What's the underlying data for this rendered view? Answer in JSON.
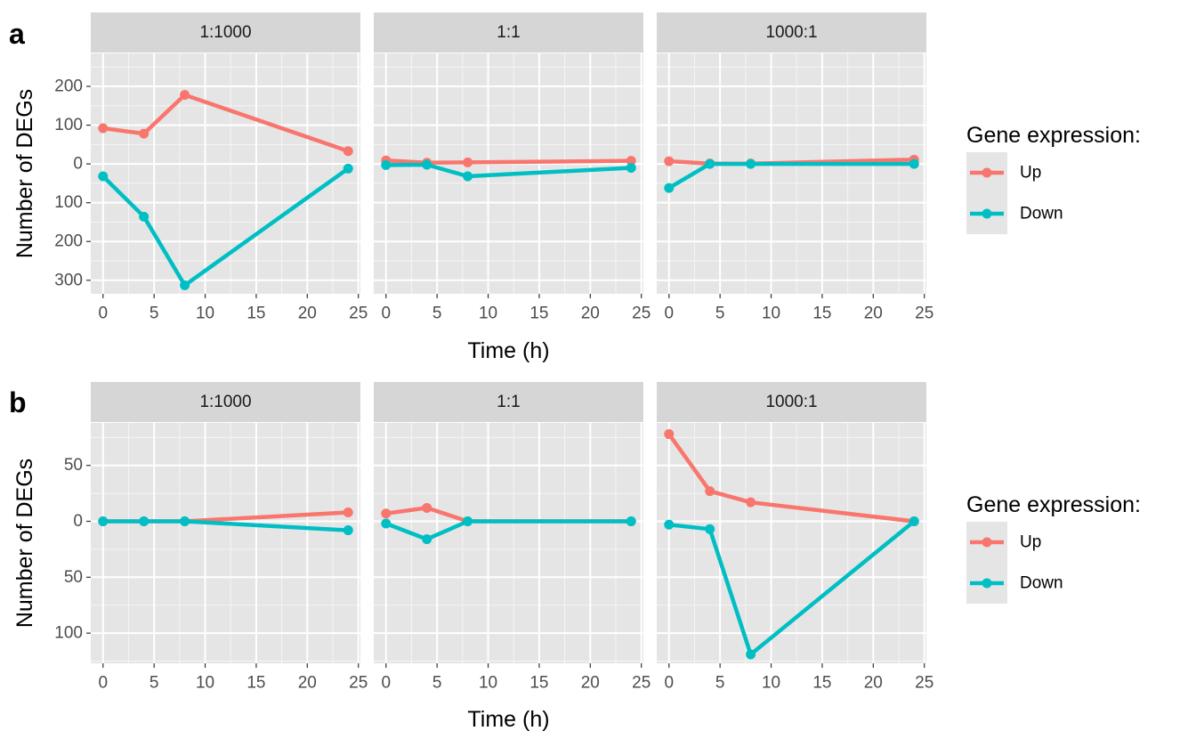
{
  "chart_data": [
    {
      "panel_letter": "a",
      "type": "line",
      "ylabel": "Number of DEGs",
      "xlabel": "Time (h)",
      "xlim": [
        -1.2,
        25.2
      ],
      "ylim": [
        -335,
        285
      ],
      "x_ticks": [
        "0",
        "5",
        "10",
        "15",
        "20",
        "25"
      ],
      "y_tick_values": [
        200,
        100,
        0,
        -100,
        -200,
        -300
      ],
      "y_tick_labels": [
        "200",
        "100",
        "0",
        "100",
        "200",
        "300"
      ],
      "legend_title": "Gene expression:",
      "legend_position": "right",
      "facets": [
        {
          "label": "1:1000",
          "series": [
            {
              "name": "Up",
              "color": "#F8766D",
              "points": [
                [
                  0,
                  92
                ],
                [
                  4,
                  78
                ],
                [
                  8,
                  178
                ],
                [
                  24,
                  33
                ]
              ]
            },
            {
              "name": "Down",
              "color": "#00BFC4",
              "points": [
                [
                  0,
                  -32
                ],
                [
                  4,
                  -136
                ],
                [
                  8,
                  -313
                ],
                [
                  24,
                  -12
                ]
              ]
            }
          ]
        },
        {
          "label": "1:1",
          "series": [
            {
              "name": "Up",
              "color": "#F8766D",
              "points": [
                [
                  0,
                  9
                ],
                [
                  4,
                  3
                ],
                [
                  8,
                  4
                ],
                [
                  24,
                  8
                ]
              ]
            },
            {
              "name": "Down",
              "color": "#00BFC4",
              "points": [
                [
                  0,
                  -3
                ],
                [
                  4,
                  -2
                ],
                [
                  8,
                  -32
                ],
                [
                  24,
                  -10
                ]
              ]
            }
          ]
        },
        {
          "label": "1000:1",
          "series": [
            {
              "name": "Up",
              "color": "#F8766D",
              "points": [
                [
                  0,
                  7
                ],
                [
                  4,
                  1
                ],
                [
                  8,
                  1
                ],
                [
                  24,
                  11
                ]
              ]
            },
            {
              "name": "Down",
              "color": "#00BFC4",
              "points": [
                [
                  0,
                  -62
                ],
                [
                  4,
                  0
                ],
                [
                  8,
                  0
                ],
                [
                  24,
                  0
                ]
              ]
            }
          ]
        }
      ]
    },
    {
      "panel_letter": "b",
      "type": "line",
      "ylabel": "Number of DEGs",
      "xlabel": "Time (h)",
      "xlim": [
        -1.2,
        25.2
      ],
      "ylim": [
        -127,
        88
      ],
      "x_ticks": [
        "0",
        "5",
        "10",
        "15",
        "20",
        "25"
      ],
      "y_tick_values": [
        50,
        0,
        -50,
        -100
      ],
      "y_tick_labels": [
        "50",
        "0",
        "50",
        "100"
      ],
      "legend_title": "Gene expression:",
      "legend_position": "right",
      "facets": [
        {
          "label": "1:1000",
          "series": [
            {
              "name": "Up",
              "color": "#F8766D",
              "points": [
                [
                  0,
                  0
                ],
                [
                  4,
                  0
                ],
                [
                  8,
                  0
                ],
                [
                  24,
                  8
                ]
              ]
            },
            {
              "name": "Down",
              "color": "#00BFC4",
              "points": [
                [
                  0,
                  0
                ],
                [
                  4,
                  0
                ],
                [
                  8,
                  0
                ],
                [
                  24,
                  -8
                ]
              ]
            }
          ]
        },
        {
          "label": "1:1",
          "series": [
            {
              "name": "Up",
              "color": "#F8766D",
              "points": [
                [
                  0,
                  7
                ],
                [
                  4,
                  12
                ],
                [
                  8,
                  0
                ],
                [
                  24,
                  0
                ]
              ]
            },
            {
              "name": "Down",
              "color": "#00BFC4",
              "points": [
                [
                  0,
                  -2
                ],
                [
                  4,
                  -16
                ],
                [
                  8,
                  0
                ],
                [
                  24,
                  0
                ]
              ]
            }
          ]
        },
        {
          "label": "1000:1",
          "series": [
            {
              "name": "Up",
              "color": "#F8766D",
              "points": [
                [
                  0,
                  78
                ],
                [
                  4,
                  27
                ],
                [
                  8,
                  17
                ],
                [
                  24,
                  0
                ]
              ]
            },
            {
              "name": "Down",
              "color": "#00BFC4",
              "points": [
                [
                  0,
                  -3
                ],
                [
                  4,
                  -7
                ],
                [
                  8,
                  -119
                ],
                [
                  24,
                  0
                ]
              ]
            }
          ]
        }
      ]
    }
  ]
}
